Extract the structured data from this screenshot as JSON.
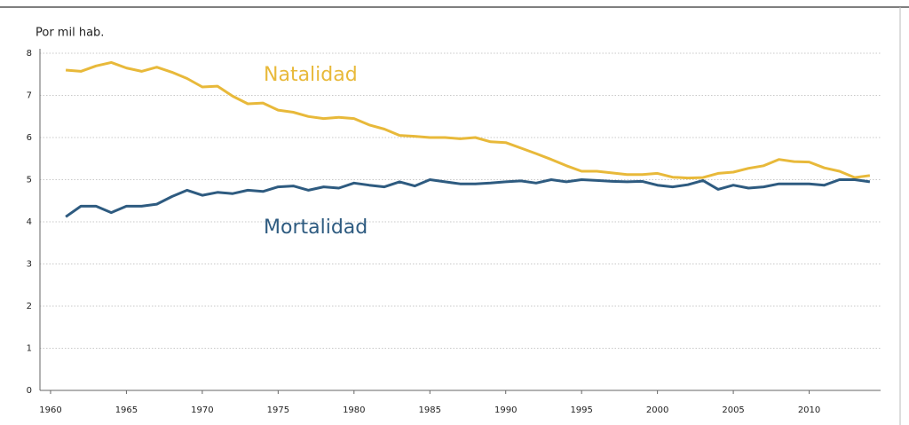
{
  "chart_data": {
    "type": "line",
    "y_label": "Por mil hab.",
    "x": [
      1961,
      1962,
      1963,
      1964,
      1965,
      1966,
      1967,
      1968,
      1969,
      1970,
      1971,
      1972,
      1973,
      1974,
      1975,
      1976,
      1977,
      1978,
      1979,
      1980,
      1981,
      1982,
      1983,
      1984,
      1985,
      1986,
      1987,
      1988,
      1989,
      1990,
      1991,
      1992,
      1993,
      1994,
      1995,
      1996,
      1997,
      1998,
      1999,
      2000,
      2001,
      2002,
      2003,
      2004,
      2005,
      2006,
      2007,
      2008,
      2009,
      2010,
      2011,
      2012,
      2013,
      2014
    ],
    "series": [
      {
        "name": "Natalidad",
        "color": "#e8b93a",
        "values": [
          7.6,
          7.57,
          7.7,
          7.78,
          7.65,
          7.57,
          7.67,
          7.55,
          7.4,
          7.2,
          7.22,
          6.98,
          6.8,
          6.82,
          6.65,
          6.6,
          6.5,
          6.45,
          6.48,
          6.45,
          6.3,
          6.2,
          6.05,
          6.03,
          6.0,
          6.0,
          5.97,
          6.0,
          5.9,
          5.88,
          5.75,
          5.62,
          5.48,
          5.33,
          5.2,
          5.2,
          5.16,
          5.12,
          5.12,
          5.15,
          5.06,
          5.04,
          5.05,
          5.15,
          5.18,
          5.27,
          5.33,
          5.48,
          5.43,
          5.42,
          5.28,
          5.2,
          5.05,
          5.1
        ]
      },
      {
        "name": "Mortalidad",
        "color": "#2e5b80",
        "values": [
          4.12,
          4.37,
          4.37,
          4.22,
          4.37,
          4.37,
          4.42,
          4.6,
          4.75,
          4.63,
          4.7,
          4.67,
          4.75,
          4.72,
          4.83,
          4.85,
          4.75,
          4.83,
          4.8,
          4.92,
          4.87,
          4.83,
          4.95,
          4.85,
          5.0,
          4.95,
          4.9,
          4.9,
          4.92,
          4.95,
          4.97,
          4.92,
          5.0,
          4.95,
          5.0,
          4.98,
          4.96,
          4.95,
          4.96,
          4.87,
          4.83,
          4.88,
          4.98,
          4.77,
          4.87,
          4.8,
          4.83,
          4.9,
          4.9,
          4.9,
          4.87,
          5.0,
          5.0,
          4.95
        ]
      }
    ],
    "xlim": [
      1959.3,
      2015
    ],
    "xticks": [
      1960,
      1965,
      1970,
      1975,
      1980,
      1985,
      1990,
      1995,
      2000,
      2005,
      2010
    ],
    "ylim": [
      0,
      8
    ],
    "yticks": [
      0,
      1,
      2,
      3,
      4,
      5,
      6,
      7,
      8
    ],
    "grid": true
  }
}
